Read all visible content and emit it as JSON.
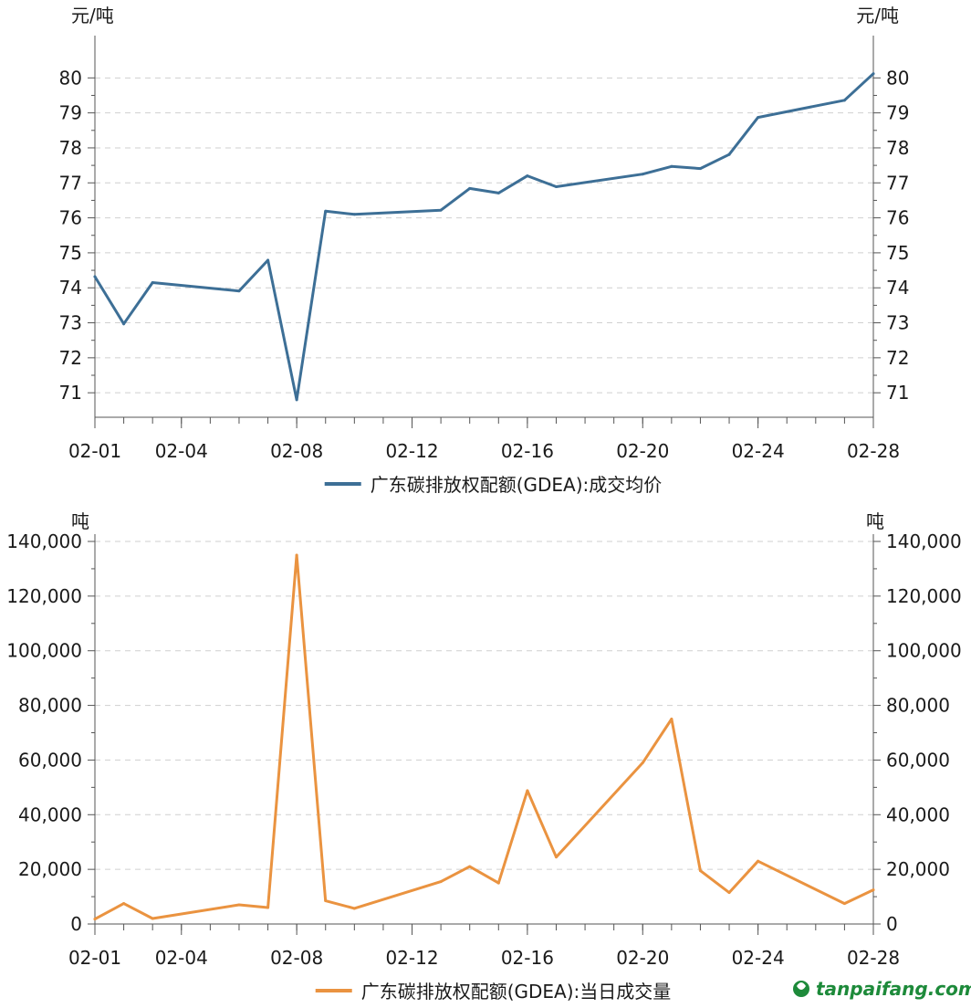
{
  "chart_data": [
    {
      "type": "line",
      "x_ticks": [
        "02-01",
        "02-04",
        "02-08",
        "02-12",
        "02-16",
        "02-20",
        "02-24",
        "02-28"
      ],
      "y_ticks": [
        "71",
        "72",
        "73",
        "74",
        "75",
        "76",
        "77",
        "78",
        "79",
        "80"
      ],
      "y_unit_left": "元/吨",
      "y_unit_right": "元/吨",
      "ylim": [
        70.3,
        81
      ],
      "grid": "horizontal-dashed",
      "legend_position": "bottom-center",
      "color": "#3d6f96",
      "series": [
        {
          "name": "广东碳排放权配额(GDEA):成交均价",
          "points": [
            [
              "02-01",
              74.32
            ],
            [
              "02-02",
              72.97
            ],
            [
              "02-03",
              74.15
            ],
            [
              "02-06",
              73.91
            ],
            [
              "02-07",
              74.79
            ],
            [
              "02-08",
              70.8
            ],
            [
              "02-09",
              76.19
            ],
            [
              "02-10",
              76.1
            ],
            [
              "02-13",
              76.22
            ],
            [
              "02-14",
              76.84
            ],
            [
              "02-15",
              76.71
            ],
            [
              "02-16",
              77.2
            ],
            [
              "02-17",
              76.89
            ],
            [
              "02-20",
              77.25
            ],
            [
              "02-21",
              77.47
            ],
            [
              "02-22",
              77.41
            ],
            [
              "02-23",
              77.81
            ],
            [
              "02-24",
              78.87
            ],
            [
              "02-27",
              79.36
            ],
            [
              "02-28",
              80.12
            ]
          ]
        }
      ]
    },
    {
      "type": "line",
      "x_ticks": [
        "02-01",
        "02-04",
        "02-08",
        "02-12",
        "02-16",
        "02-20",
        "02-24",
        "02-28"
      ],
      "y_ticks": [
        "0",
        "20,000",
        "40,000",
        "60,000",
        "80,000",
        "100,000",
        "120,000",
        "140,000"
      ],
      "y_unit_left": "吨",
      "y_unit_right": "吨",
      "ylim": [
        0,
        140000
      ],
      "grid": "horizontal-dashed",
      "legend_position": "bottom-center",
      "color": "#ea9340",
      "series": [
        {
          "name": "广东碳排放权配额(GDEA):当日成交量",
          "points": [
            [
              "02-01",
              1800
            ],
            [
              "02-02",
              7500
            ],
            [
              "02-03",
              2000
            ],
            [
              "02-06",
              7000
            ],
            [
              "02-07",
              6000
            ],
            [
              "02-08",
              135000
            ],
            [
              "02-09",
              8500
            ],
            [
              "02-10",
              5700
            ],
            [
              "02-13",
              15500
            ],
            [
              "02-14",
              21000
            ],
            [
              "02-15",
              15000
            ],
            [
              "02-16",
              48800
            ],
            [
              "02-17",
              24500
            ],
            [
              "02-20",
              59000
            ],
            [
              "02-21",
              75000
            ],
            [
              "02-22",
              19500
            ],
            [
              "02-23",
              11500
            ],
            [
              "02-24",
              23000
            ],
            [
              "02-27",
              7500
            ],
            [
              "02-28",
              12500
            ]
          ]
        }
      ]
    }
  ],
  "watermark": {
    "text": "tanpaifang.com",
    "icon": "tanpaifang-logo-icon"
  }
}
